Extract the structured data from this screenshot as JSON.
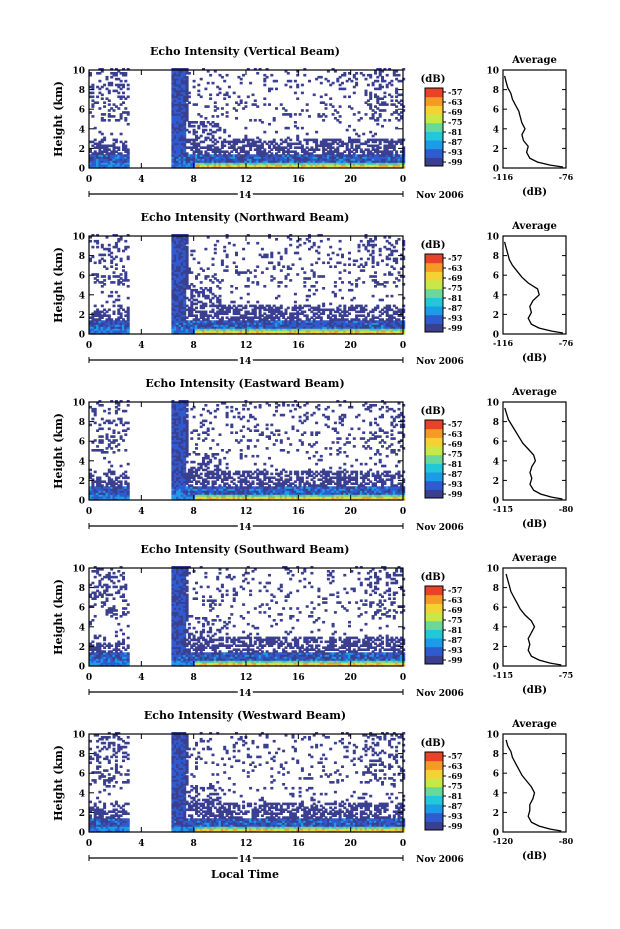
{
  "figure": {
    "xlabel": "Local Time",
    "date_label": "Nov 2006",
    "day_label": "14",
    "colorbar_unit": "(dB)",
    "avg_title": "Average",
    "avg_xlabel": "(dB)"
  },
  "colors": {
    "scale": [
      "#3b3f8f",
      "#2f5bd0",
      "#1c9be6",
      "#22c7d8",
      "#69d89a",
      "#c8e848",
      "#f5d233",
      "#f59a25",
      "#e8432a"
    ]
  },
  "chart_data": [
    {
      "type": "heatmap",
      "title": "Echo Intensity (Vertical Beam)",
      "ylabel": "Height (km)",
      "x_ticks": [
        "0",
        "4",
        "8",
        "12",
        "16",
        "20",
        "0"
      ],
      "x_range": [
        0,
        24
      ],
      "y_ticks": [
        "0",
        "2",
        "4",
        "6",
        "8",
        "10"
      ],
      "y_range": [
        0,
        10
      ],
      "colorbar_ticks": [
        "-57",
        "-63",
        "-69",
        "-75",
        "-81",
        "-87",
        "-93",
        "-99"
      ],
      "data_gap_hours": [
        3.0,
        6.2
      ],
      "avg_profile": {
        "xlim": [
          -116,
          -76
        ],
        "x_ticks": [
          "-116",
          "-76"
        ],
        "y_ticks": [
          "0",
          "2",
          "4",
          "6",
          "8",
          "10"
        ],
        "points": [
          [
            -78,
            0.1
          ],
          [
            -86,
            0.3
          ],
          [
            -94,
            0.6
          ],
          [
            -99,
            1.0
          ],
          [
            -101,
            1.6
          ],
          [
            -100,
            2.2
          ],
          [
            -103,
            2.8
          ],
          [
            -104,
            3.4
          ],
          [
            -102,
            4.0
          ],
          [
            -104,
            4.6
          ],
          [
            -105,
            5.2
          ],
          [
            -106,
            5.8
          ],
          [
            -108,
            6.4
          ],
          [
            -110,
            7.0
          ],
          [
            -111,
            7.6
          ],
          [
            -113,
            8.2
          ],
          [
            -114,
            8.8
          ],
          [
            -115,
            9.4
          ]
        ]
      }
    },
    {
      "type": "heatmap",
      "title": "Echo Intensity (Northward Beam)",
      "ylabel": "Height (km)",
      "x_ticks": [
        "0",
        "4",
        "8",
        "12",
        "16",
        "20",
        "0"
      ],
      "x_range": [
        0,
        24
      ],
      "y_ticks": [
        "0",
        "2",
        "4",
        "6",
        "8",
        "10"
      ],
      "y_range": [
        0,
        10
      ],
      "colorbar_ticks": [
        "-57",
        "-63",
        "-69",
        "-75",
        "-81",
        "-87",
        "-93",
        "-99"
      ],
      "data_gap_hours": [
        3.0,
        6.2
      ],
      "avg_profile": {
        "xlim": [
          -116,
          -76
        ],
        "x_ticks": [
          "-116",
          "-76"
        ],
        "y_ticks": [
          "0",
          "2",
          "4",
          "6",
          "8",
          "10"
        ],
        "points": [
          [
            -78,
            0.1
          ],
          [
            -85,
            0.3
          ],
          [
            -93,
            0.6
          ],
          [
            -98,
            1.0
          ],
          [
            -100,
            1.6
          ],
          [
            -98,
            2.2
          ],
          [
            -99,
            2.8
          ],
          [
            -97,
            3.4
          ],
          [
            -93,
            4.0
          ],
          [
            -94,
            4.6
          ],
          [
            -100,
            5.2
          ],
          [
            -104,
            5.8
          ],
          [
            -107,
            6.4
          ],
          [
            -110,
            7.0
          ],
          [
            -112,
            7.6
          ],
          [
            -113,
            8.2
          ],
          [
            -114,
            8.8
          ],
          [
            -115,
            9.4
          ]
        ]
      }
    },
    {
      "type": "heatmap",
      "title": "Echo Intensity (Eastward Beam)",
      "ylabel": "Height (km)",
      "x_ticks": [
        "0",
        "4",
        "8",
        "12",
        "16",
        "20",
        "0"
      ],
      "x_range": [
        0,
        24
      ],
      "y_ticks": [
        "0",
        "2",
        "4",
        "6",
        "8",
        "10"
      ],
      "y_range": [
        0,
        10
      ],
      "colorbar_ticks": [
        "-57",
        "-63",
        "-69",
        "-75",
        "-81",
        "-87",
        "-93",
        "-99"
      ],
      "data_gap_hours": [
        3.0,
        6.2
      ],
      "avg_profile": {
        "xlim": [
          -115,
          -80
        ],
        "x_ticks": [
          "-115",
          "-80"
        ],
        "y_ticks": [
          "0",
          "2",
          "4",
          "6",
          "8",
          "10"
        ],
        "points": [
          [
            -82,
            0.1
          ],
          [
            -88,
            0.3
          ],
          [
            -94,
            0.6
          ],
          [
            -98,
            1.0
          ],
          [
            -100,
            1.6
          ],
          [
            -99,
            2.2
          ],
          [
            -100,
            2.8
          ],
          [
            -99,
            3.4
          ],
          [
            -97,
            4.0
          ],
          [
            -98,
            4.6
          ],
          [
            -101,
            5.2
          ],
          [
            -104,
            5.8
          ],
          [
            -106,
            6.4
          ],
          [
            -108,
            7.0
          ],
          [
            -110,
            7.6
          ],
          [
            -112,
            8.2
          ],
          [
            -113,
            8.8
          ],
          [
            -114,
            9.4
          ]
        ]
      }
    },
    {
      "type": "heatmap",
      "title": "Echo Intensity (Southward Beam)",
      "ylabel": "Height (km)",
      "x_ticks": [
        "0",
        "4",
        "8",
        "12",
        "16",
        "20",
        "0"
      ],
      "x_range": [
        0,
        24
      ],
      "y_ticks": [
        "0",
        "2",
        "4",
        "6",
        "8",
        "10"
      ],
      "y_range": [
        0,
        10
      ],
      "colorbar_ticks": [
        "-57",
        "-63",
        "-69",
        "-75",
        "-81",
        "-87",
        "-93",
        "-99"
      ],
      "data_gap_hours": [
        3.0,
        6.2
      ],
      "avg_profile": {
        "xlim": [
          -115,
          -75
        ],
        "x_ticks": [
          "-115",
          "-75"
        ],
        "y_ticks": [
          "0",
          "2",
          "4",
          "6",
          "8",
          "10"
        ],
        "points": [
          [
            -78,
            0.1
          ],
          [
            -85,
            0.3
          ],
          [
            -92,
            0.6
          ],
          [
            -97,
            1.0
          ],
          [
            -99,
            1.6
          ],
          [
            -98,
            2.2
          ],
          [
            -99,
            2.8
          ],
          [
            -97,
            3.4
          ],
          [
            -95,
            4.0
          ],
          [
            -97,
            4.6
          ],
          [
            -101,
            5.2
          ],
          [
            -104,
            5.8
          ],
          [
            -106,
            6.4
          ],
          [
            -108,
            7.0
          ],
          [
            -110,
            7.6
          ],
          [
            -111,
            8.2
          ],
          [
            -112,
            8.8
          ],
          [
            -113,
            9.4
          ]
        ]
      }
    },
    {
      "type": "heatmap",
      "title": "Echo Intensity (Westward Beam)",
      "ylabel": "Height (km)",
      "x_ticks": [
        "0",
        "4",
        "8",
        "12",
        "16",
        "20",
        "0"
      ],
      "x_range": [
        0,
        24
      ],
      "y_ticks": [
        "0",
        "2",
        "4",
        "6",
        "8",
        "10"
      ],
      "y_range": [
        0,
        10
      ],
      "colorbar_ticks": [
        "-57",
        "-63",
        "-69",
        "-75",
        "-81",
        "-87",
        "-93",
        "-99"
      ],
      "data_gap_hours": [
        3.0,
        6.2
      ],
      "avg_profile": {
        "xlim": [
          -120,
          -80
        ],
        "x_ticks": [
          "-120",
          "-80"
        ],
        "y_ticks": [
          "0",
          "2",
          "4",
          "6",
          "8",
          "10"
        ],
        "points": [
          [
            -83,
            0.1
          ],
          [
            -90,
            0.3
          ],
          [
            -97,
            0.6
          ],
          [
            -102,
            1.0
          ],
          [
            -104,
            1.6
          ],
          [
            -103,
            2.2
          ],
          [
            -103,
            2.8
          ],
          [
            -101,
            3.4
          ],
          [
            -100,
            4.0
          ],
          [
            -102,
            4.6
          ],
          [
            -105,
            5.2
          ],
          [
            -108,
            5.8
          ],
          [
            -110,
            6.4
          ],
          [
            -112,
            7.0
          ],
          [
            -114,
            7.6
          ],
          [
            -115,
            8.2
          ],
          [
            -117,
            8.8
          ],
          [
            -118,
            9.4
          ]
        ]
      }
    }
  ]
}
